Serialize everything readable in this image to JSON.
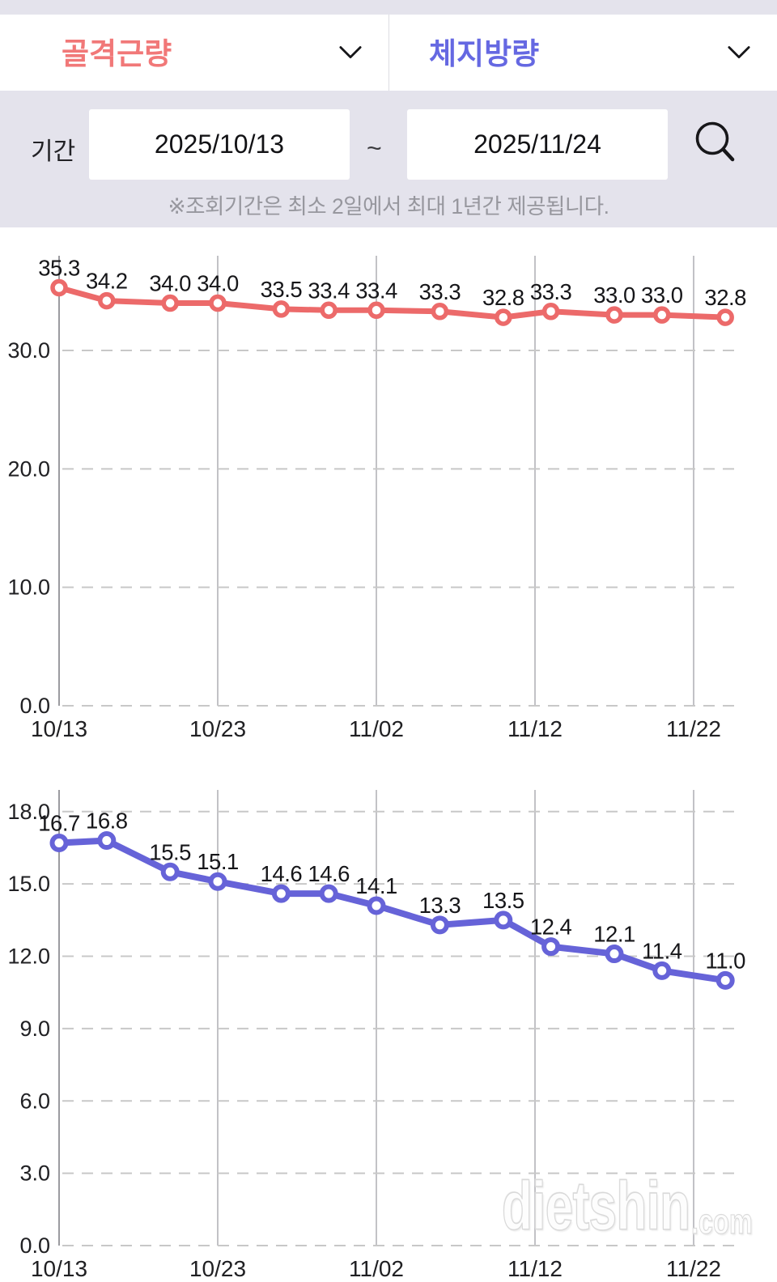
{
  "header": {
    "left_select": {
      "label": "골격근량",
      "color": "#f17878"
    },
    "right_select": {
      "label": "체지방량",
      "color": "#6568e2"
    }
  },
  "period": {
    "label": "기간",
    "start_date": "2025/10/13",
    "separator": "~",
    "end_date": "2025/11/24",
    "note": "※조회기간은 최소 2일에서 최대 1년간 제공됩니다."
  },
  "colors": {
    "panel_background": "#e4e3ec",
    "muscle_series": "#ec6a6a",
    "fat_series": "#6663d8",
    "grid_vertical": "#aeaeb4",
    "grid_dashed": "#c8c8c8",
    "axis_text": "#202023"
  },
  "watermark": {
    "main": "dietshin",
    "suffix": ".com"
  },
  "chart_data": [
    {
      "type": "line",
      "title": "골격근량",
      "color": "#ec6a6a",
      "x_tick_labels": [
        "10/13",
        "10/23",
        "11/02",
        "11/12",
        "11/22"
      ],
      "x_tick_days": [
        0,
        10,
        20,
        30,
        40
      ],
      "x_days": [
        0,
        3,
        7,
        10,
        14,
        17,
        20,
        24,
        28,
        31,
        35,
        38,
        42
      ],
      "values": [
        35.3,
        34.2,
        34.0,
        34.0,
        33.5,
        33.4,
        33.4,
        33.3,
        32.8,
        33.3,
        33.0,
        33.0,
        32.8
      ],
      "y_ticks": [
        0,
        10,
        20,
        30
      ],
      "y_tick_labels": [
        "0.0",
        "10.0",
        "20.0",
        "30.0"
      ],
      "ylim": [
        0,
        38
      ],
      "grid": "horizontal-dashed, vertical-solid",
      "legend": "none"
    },
    {
      "type": "line",
      "title": "체지방량",
      "color": "#6663d8",
      "x_tick_labels": [
        "10/13",
        "10/23",
        "11/02",
        "11/12",
        "11/22"
      ],
      "x_tick_days": [
        0,
        10,
        20,
        30,
        40
      ],
      "x_days": [
        0,
        3,
        7,
        10,
        14,
        17,
        20,
        24,
        28,
        31,
        35,
        38,
        42
      ],
      "values": [
        16.7,
        16.8,
        15.5,
        15.1,
        14.6,
        14.6,
        14.1,
        13.3,
        13.5,
        12.4,
        12.1,
        11.4,
        11.0
      ],
      "y_ticks": [
        0,
        3,
        6,
        9,
        12,
        15,
        18
      ],
      "y_tick_labels": [
        "0.0",
        "3.0",
        "6.0",
        "9.0",
        "12.0",
        "15.0",
        "18.0"
      ],
      "ylim": [
        0,
        18.9
      ],
      "grid": "horizontal-dashed, vertical-solid",
      "legend": "none"
    }
  ]
}
